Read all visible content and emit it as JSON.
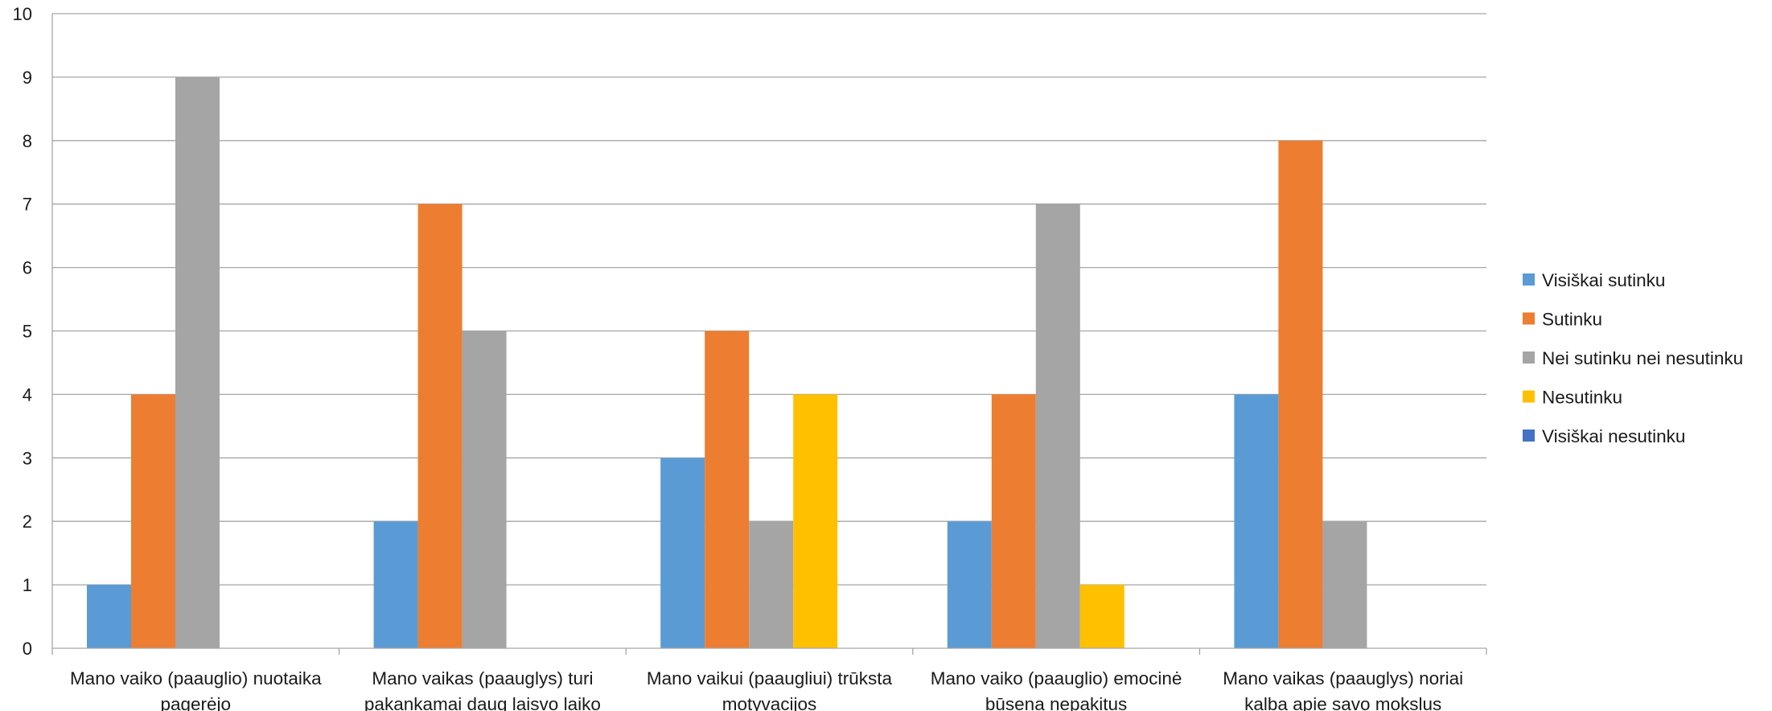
{
  "chart_data": {
    "type": "bar",
    "title": "",
    "xlabel": "",
    "ylabel": "",
    "ylim": [
      0,
      10
    ],
    "yticks": [
      0,
      1,
      2,
      3,
      4,
      5,
      6,
      7,
      8,
      9,
      10
    ],
    "grid": true,
    "legend_position": "right",
    "categories": [
      [
        "Mano vaiko (paauglio) nuotaika",
        "pagerėjo"
      ],
      [
        "Mano vaikas (paauglys) turi",
        "pakankamai daug laisvo laiko"
      ],
      [
        "Mano vaikui (paaugliui) trūksta",
        "motyvacijos"
      ],
      [
        "Mano vaiko (paauglio) emocinė",
        "būsena nepakitus"
      ],
      [
        "Mano vaikas (paauglys) noriai",
        "kalba apie savo mokslus"
      ]
    ],
    "series": [
      {
        "name": "Visiškai sutinku",
        "color": "#5B9BD5",
        "values": [
          1,
          2,
          3,
          2,
          4
        ]
      },
      {
        "name": "Sutinku",
        "color": "#ED7D31",
        "values": [
          4,
          7,
          5,
          4,
          8
        ]
      },
      {
        "name": "Nei sutinku nei nesutinku",
        "color": "#A5A5A5",
        "values": [
          9,
          5,
          2,
          7,
          2
        ]
      },
      {
        "name": "Nesutinku",
        "color": "#FFC000",
        "values": [
          0,
          0,
          4,
          1,
          0
        ]
      },
      {
        "name": "Visiškai nesutinku",
        "color": "#4472C4",
        "values": [
          0,
          0,
          0,
          0,
          0
        ]
      }
    ]
  }
}
